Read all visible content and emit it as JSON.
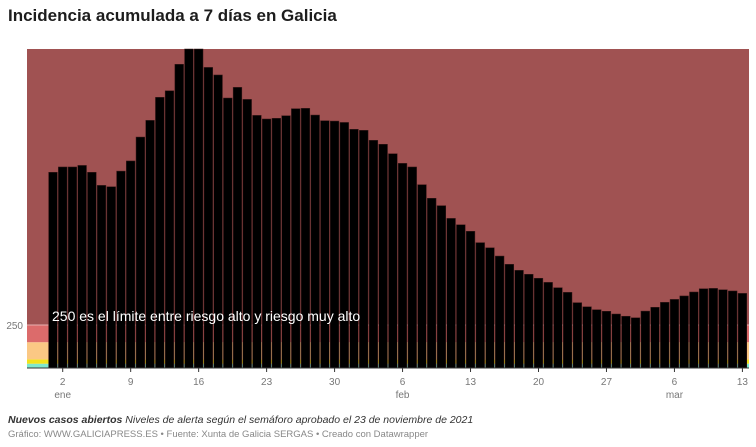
{
  "chart_data": {
    "type": "bar",
    "title": "Incidencia acumulada a 7 días en Galicia",
    "x_start": "2022-01-01",
    "categories": [
      "1 ene",
      "2 ene",
      "3 ene",
      "4 ene",
      "5 ene",
      "6 ene",
      "7 ene",
      "8 ene",
      "9 ene",
      "10 ene",
      "11 ene",
      "12 ene",
      "13 ene",
      "14 ene",
      "15 ene",
      "16 ene",
      "17 ene",
      "18 ene",
      "19 ene",
      "20 ene",
      "21 ene",
      "22 ene",
      "23 ene",
      "24 ene",
      "25 ene",
      "26 ene",
      "27 ene",
      "28 ene",
      "29 ene",
      "30 ene",
      "31 ene",
      "1 feb",
      "2 feb",
      "3 feb",
      "4 feb",
      "5 feb",
      "6 feb",
      "7 feb",
      "8 feb",
      "9 feb",
      "10 feb",
      "11 feb",
      "12 feb",
      "13 feb",
      "14 feb",
      "15 feb",
      "16 feb",
      "17 feb",
      "18 feb",
      "19 feb",
      "20 feb",
      "21 feb",
      "22 feb",
      "23 feb",
      "24 feb",
      "25 feb",
      "26 feb",
      "27 feb",
      "28 feb",
      "1 mar",
      "2 mar",
      "3 mar",
      "4 mar",
      "5 mar",
      "6 mar",
      "7 mar",
      "8 mar",
      "9 mar",
      "10 mar",
      "11 mar",
      "12 mar",
      "13 mar"
    ],
    "values": [
      1138,
      1169,
      1169,
      1178,
      1138,
      1062,
      1054,
      1145,
      1204,
      1343,
      1440,
      1574,
      1612,
      1766,
      1855,
      1855,
      1748,
      1704,
      1570,
      1632,
      1562,
      1469,
      1448,
      1452,
      1467,
      1508,
      1510,
      1471,
      1438,
      1436,
      1428,
      1388,
      1382,
      1324,
      1301,
      1246,
      1190,
      1169,
      1066,
      987,
      944,
      870,
      833,
      795,
      729,
      699,
      651,
      603,
      568,
      545,
      522,
      498,
      467,
      440,
      380,
      356,
      339,
      330,
      314,
      301,
      292,
      331,
      353,
      382,
      399,
      419,
      442,
      461,
      463,
      455,
      448,
      434
    ],
    "ylim": [
      0,
      1855
    ],
    "y_ticks": [
      {
        "value": 250,
        "label": "250"
      }
    ],
    "x_ticks": [
      {
        "index": 1,
        "label": "2",
        "month": "ene"
      },
      {
        "index": 8,
        "label": "9",
        "month": ""
      },
      {
        "index": 15,
        "label": "16",
        "month": ""
      },
      {
        "index": 22,
        "label": "23",
        "month": ""
      },
      {
        "index": 29,
        "label": "30",
        "month": ""
      },
      {
        "index": 36,
        "label": "6",
        "month": "feb"
      },
      {
        "index": 43,
        "label": "13",
        "month": ""
      },
      {
        "index": 50,
        "label": "20",
        "month": ""
      },
      {
        "index": 57,
        "label": "27",
        "month": ""
      },
      {
        "index": 64,
        "label": "6",
        "month": "mar"
      },
      {
        "index": 71,
        "label": "13",
        "month": ""
      }
    ],
    "bands": [
      {
        "from": 0,
        "to": 25,
        "color": "#7ee8cc"
      },
      {
        "from": 25,
        "to": 50,
        "color": "#f2e21a"
      },
      {
        "from": 50,
        "to": 150,
        "color": "#fbc884"
      },
      {
        "from": 150,
        "to": 250,
        "color": "#dc6b6b"
      },
      {
        "from": 250,
        "to": 1855,
        "color": "#a05252"
      }
    ],
    "bar_color": "#000000",
    "annotation": "250 es el límite entre riesgo alto y riesgo muy alto",
    "grid": false
  },
  "notes": {
    "bold": "Nuevos casos abiertos",
    "text": " Niveles de alerta según el semáforo aprobado el 23 de noviembre de 2021"
  },
  "byline": "Gráfico: WWW.GALICIAPRESS.ES • Fuente: Xunta de Galicia SERGAS • Creado con Datawrapper"
}
